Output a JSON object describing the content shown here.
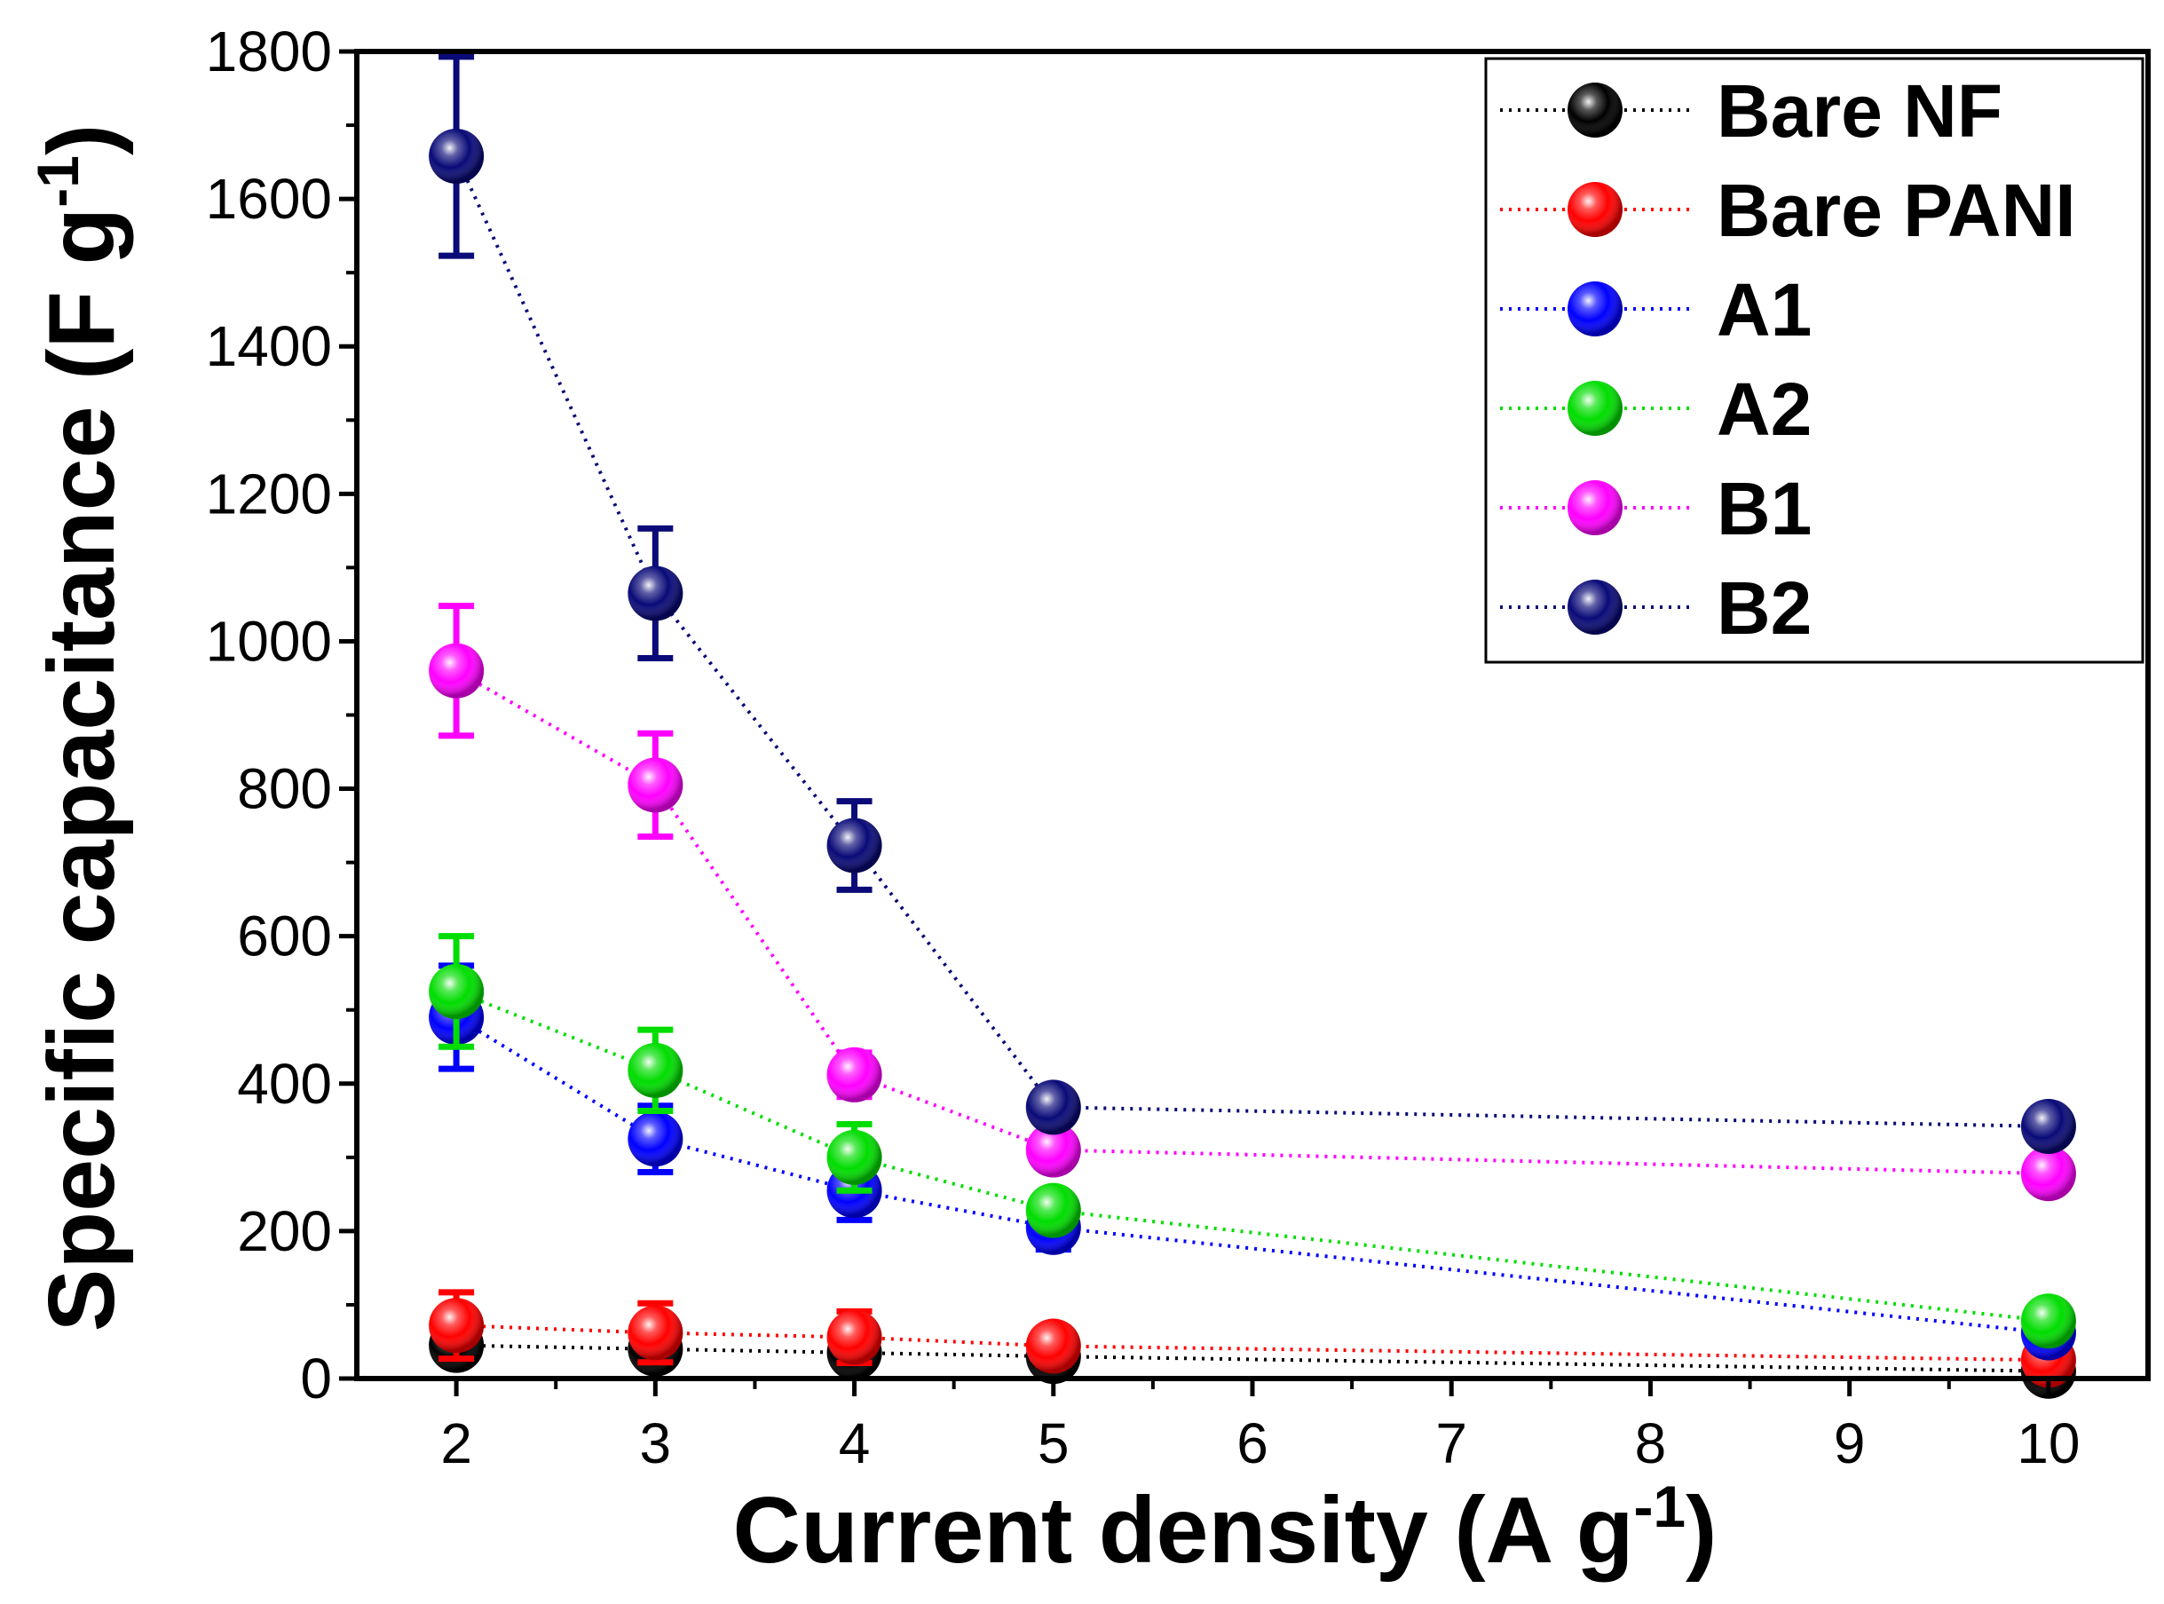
{
  "chart_data": {
    "type": "line",
    "xlabel": "Current density (A g",
    "xlabel_sup": "-1",
    "xlabel_end": ")",
    "ylabel": "Specific capacitance (F g",
    "ylabel_sup": "-1",
    "ylabel_end": ")",
    "xlim": [
      1.5,
      10.5
    ],
    "ylim": [
      0,
      1800
    ],
    "xticks": [
      2,
      3,
      4,
      5,
      6,
      7,
      8,
      9,
      10
    ],
    "yticks": [
      0,
      200,
      400,
      600,
      800,
      1000,
      1200,
      1400,
      1600,
      1800
    ],
    "x": [
      2,
      3,
      4,
      5,
      10
    ],
    "legend_position": "top-right",
    "series": [
      {
        "name": "Bare NF",
        "color": "#000000",
        "values": [
          45,
          40,
          35,
          30,
          10
        ],
        "errors": [
          15,
          15,
          15,
          15,
          8
        ]
      },
      {
        "name": "Bare PANI",
        "color": "#ff0000",
        "values": [
          72,
          62,
          56,
          44,
          25
        ],
        "errors": [
          45,
          40,
          35,
          25,
          12
        ]
      },
      {
        "name": "A1",
        "color": "#0000ff",
        "values": [
          490,
          325,
          255,
          205,
          62
        ],
        "errors": [
          70,
          45,
          40,
          30,
          25
        ]
      },
      {
        "name": "A2",
        "color": "#00dd00",
        "values": [
          525,
          418,
          300,
          228,
          78
        ],
        "errors": [
          75,
          55,
          45,
          20,
          10
        ]
      },
      {
        "name": "B1",
        "color": "#ff00ff",
        "values": [
          960,
          805,
          412,
          310,
          278
        ],
        "errors": [
          88,
          70,
          30,
          10,
          10
        ]
      },
      {
        "name": "B2",
        "color": "#0a0a78",
        "values": [
          1658,
          1065,
          723,
          368,
          342
        ],
        "errors": [
          135,
          88,
          60,
          10,
          10
        ]
      }
    ]
  }
}
